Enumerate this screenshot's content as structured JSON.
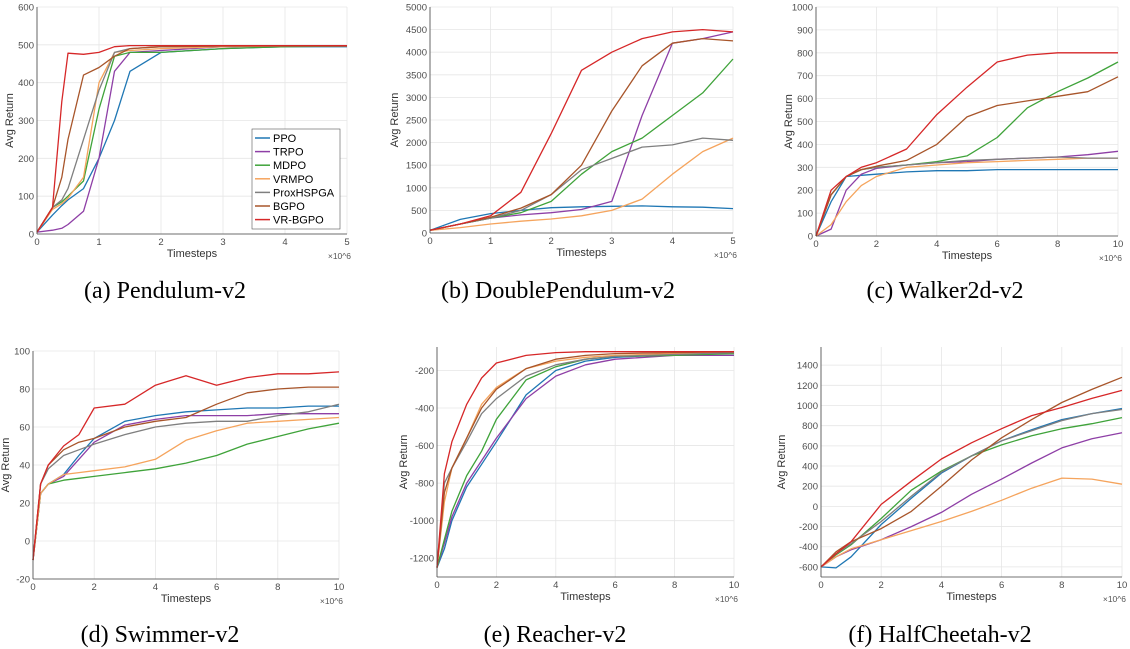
{
  "legend": {
    "placement": "bottom-right of panel (a)"
  },
  "colors": {
    "PPO": "#1f77b4",
    "TRPO": "#8e3fa6",
    "MDPO": "#3fa33a",
    "VRMPO": "#f5a45d",
    "ProxHSPGA": "#7f7f7f",
    "BGPO": "#a8552a",
    "VR-BGPO": "#d62728"
  },
  "chart_data": [
    {
      "type": "line",
      "caption": "(a) Pendulum-v2",
      "xlabel": "Timesteps",
      "ylabel": "Avg Return",
      "x_multiplier": "×10^6",
      "xlim": [
        0,
        5
      ],
      "ylim": [
        0,
        600
      ],
      "grid": true,
      "xticks": [
        0,
        1,
        2,
        3,
        4,
        5
      ],
      "yticks": [
        0,
        100,
        200,
        300,
        400,
        500,
        600
      ],
      "x": [
        0,
        0.25,
        0.4,
        0.5,
        0.75,
        1,
        1.25,
        1.5,
        2,
        3,
        4,
        5
      ],
      "series": [
        {
          "name": "PPO",
          "values": [
            5,
            50,
            75,
            90,
            120,
            200,
            300,
            430,
            480,
            490,
            495,
            495
          ]
        },
        {
          "name": "TRPO",
          "values": [
            5,
            10,
            15,
            25,
            60,
            200,
            430,
            480,
            485,
            495,
            497,
            497
          ]
        },
        {
          "name": "MDPO",
          "values": [
            5,
            70,
            85,
            100,
            140,
            330,
            470,
            480,
            480,
            490,
            495,
            497
          ]
        },
        {
          "name": "VRMPO",
          "values": [
            5,
            65,
            80,
            95,
            150,
            400,
            480,
            485,
            490,
            495,
            497,
            497
          ]
        },
        {
          "name": "ProxHSPGA",
          "values": [
            5,
            70,
            90,
            120,
            250,
            380,
            480,
            490,
            495,
            497,
            497,
            497
          ]
        },
        {
          "name": "BGPO",
          "values": [
            5,
            70,
            150,
            250,
            420,
            440,
            470,
            490,
            495,
            497,
            497,
            497
          ]
        },
        {
          "name": "VR-BGPO",
          "values": [
            5,
            70,
            350,
            478,
            475,
            480,
            495,
            498,
            498,
            498,
            498,
            498
          ]
        }
      ]
    },
    {
      "type": "line",
      "caption": "(b) DoublePendulum-v2",
      "xlabel": "Timesteps",
      "ylabel": "Avg Return",
      "x_multiplier": "×10^6",
      "xlim": [
        0,
        5
      ],
      "ylim": [
        0,
        5000
      ],
      "grid": true,
      "xticks": [
        0,
        1,
        2,
        3,
        4,
        5
      ],
      "yticks": [
        0,
        500,
        1000,
        1500,
        2000,
        2500,
        3000,
        3500,
        4000,
        4500,
        5000
      ],
      "x": [
        0,
        0.5,
        1,
        1.5,
        2,
        2.5,
        3,
        3.5,
        4,
        4.5,
        5
      ],
      "series": [
        {
          "name": "PPO",
          "values": [
            60,
            300,
            430,
            500,
            560,
            580,
            590,
            600,
            580,
            570,
            540
          ]
        },
        {
          "name": "TRPO",
          "values": [
            60,
            200,
            330,
            400,
            450,
            520,
            700,
            2600,
            4200,
            4300,
            4450
          ]
        },
        {
          "name": "MDPO",
          "values": [
            60,
            200,
            330,
            450,
            700,
            1300,
            1800,
            2100,
            2600,
            3100,
            3850
          ]
        },
        {
          "name": "VRMPO",
          "values": [
            60,
            120,
            200,
            260,
            310,
            380,
            500,
            750,
            1300,
            1800,
            2100
          ]
        },
        {
          "name": "ProxHSPGA",
          "values": [
            60,
            200,
            330,
            500,
            850,
            1400,
            1650,
            1900,
            1950,
            2100,
            2050
          ]
        },
        {
          "name": "BGPO",
          "values": [
            60,
            200,
            350,
            550,
            850,
            1500,
            2700,
            3700,
            4200,
            4300,
            4250
          ]
        },
        {
          "name": "VR-BGPO",
          "values": [
            60,
            200,
            380,
            900,
            2200,
            3600,
            4000,
            4300,
            4450,
            4500,
            4450
          ]
        }
      ]
    },
    {
      "type": "line",
      "caption": "(c) Walker2d-v2",
      "xlabel": "Timesteps",
      "ylabel": "Avg Return",
      "x_multiplier": "×10^6",
      "xlim": [
        0,
        10
      ],
      "ylim": [
        0,
        1000
      ],
      "grid": true,
      "xticks": [
        0,
        2,
        4,
        6,
        8,
        10
      ],
      "yticks": [
        0,
        100,
        200,
        300,
        400,
        500,
        600,
        700,
        800,
        900,
        1000
      ],
      "x": [
        0,
        0.5,
        1,
        1.5,
        2,
        3,
        4,
        5,
        6,
        7,
        8,
        9,
        10
      ],
      "series": [
        {
          "name": "PPO",
          "values": [
            0,
            150,
            260,
            265,
            270,
            280,
            285,
            285,
            290,
            290,
            290,
            290,
            290
          ]
        },
        {
          "name": "TRPO",
          "values": [
            0,
            30,
            200,
            270,
            295,
            310,
            320,
            325,
            335,
            340,
            345,
            355,
            370
          ]
        },
        {
          "name": "MDPO",
          "values": [
            0,
            180,
            260,
            290,
            300,
            310,
            325,
            350,
            430,
            560,
            630,
            690,
            760
          ]
        },
        {
          "name": "VRMPO",
          "values": [
            0,
            50,
            150,
            220,
            260,
            300,
            310,
            320,
            325,
            330,
            335,
            340,
            340
          ]
        },
        {
          "name": "ProxHSPGA",
          "values": [
            0,
            180,
            260,
            290,
            300,
            310,
            320,
            330,
            335,
            340,
            345,
            340,
            340
          ]
        },
        {
          "name": "BGPO",
          "values": [
            0,
            180,
            260,
            290,
            305,
            330,
            400,
            520,
            570,
            590,
            610,
            630,
            695
          ]
        },
        {
          "name": "VR-BGPO",
          "values": [
            0,
            200,
            260,
            300,
            320,
            380,
            530,
            650,
            760,
            790,
            800,
            800,
            800
          ]
        }
      ]
    },
    {
      "type": "line",
      "caption": "(d) Swimmer-v2",
      "xlabel": "Timesteps",
      "ylabel": "Avg Return",
      "x_multiplier": "×10^6",
      "xlim": [
        0,
        10
      ],
      "ylim": [
        -20,
        100
      ],
      "grid": true,
      "xticks": [
        0,
        2,
        4,
        6,
        8,
        10
      ],
      "yticks": [
        -20,
        0,
        20,
        40,
        60,
        80,
        100
      ],
      "x": [
        0,
        0.25,
        0.5,
        1,
        1.5,
        2,
        3,
        4,
        5,
        6,
        7,
        8,
        9,
        10
      ],
      "series": [
        {
          "name": "PPO",
          "values": [
            -10,
            25,
            30,
            35,
            45,
            54,
            63,
            66,
            68,
            69,
            70,
            70,
            71,
            71
          ]
        },
        {
          "name": "TRPO",
          "values": [
            -10,
            25,
            30,
            34,
            43,
            52,
            61,
            64,
            66,
            66,
            66,
            67,
            67,
            67
          ]
        },
        {
          "name": "MDPO",
          "values": [
            -10,
            25,
            30,
            32,
            33,
            34,
            36,
            38,
            41,
            45,
            51,
            55,
            59,
            62
          ]
        },
        {
          "name": "VRMPO",
          "values": [
            -10,
            25,
            30,
            35,
            36,
            37,
            39,
            43,
            53,
            58,
            62,
            63,
            64,
            65
          ]
        },
        {
          "name": "ProxHSPGA",
          "values": [
            -10,
            30,
            38,
            45,
            48,
            51,
            56,
            60,
            62,
            63,
            63,
            66,
            68,
            72
          ]
        },
        {
          "name": "BGPO",
          "values": [
            -10,
            30,
            40,
            48,
            52,
            54,
            60,
            63,
            65,
            72,
            78,
            80,
            81,
            81
          ]
        },
        {
          "name": "VR-BGPO",
          "values": [
            -10,
            30,
            40,
            50,
            56,
            70,
            72,
            82,
            87,
            82,
            86,
            88,
            88,
            89
          ]
        }
      ]
    },
    {
      "type": "line",
      "caption": "(e) Reacher-v2",
      "xlabel": "Timesteps",
      "ylabel": "Avg Return",
      "x_multiplier": "×10^6",
      "xlim": [
        0,
        10
      ],
      "ylim": [
        -1300,
        -75
      ],
      "grid": true,
      "xticks": [
        0,
        2,
        4,
        6,
        8,
        10
      ],
      "yticks": [
        -1200,
        -1000,
        -800,
        -600,
        -400,
        -200
      ],
      "x": [
        0,
        0.25,
        0.5,
        1,
        1.5,
        2,
        3,
        4,
        5,
        6,
        8,
        10
      ],
      "series": [
        {
          "name": "PPO",
          "values": [
            -1250,
            -1150,
            -1000,
            -820,
            -700,
            -580,
            -330,
            -200,
            -150,
            -130,
            -115,
            -110
          ]
        },
        {
          "name": "TRPO",
          "values": [
            -1250,
            -1120,
            -980,
            -800,
            -680,
            -560,
            -350,
            -230,
            -170,
            -140,
            -120,
            -120
          ]
        },
        {
          "name": "MDPO",
          "values": [
            -1250,
            -1100,
            -950,
            -760,
            -630,
            -460,
            -250,
            -180,
            -140,
            -125,
            -120,
            -110
          ]
        },
        {
          "name": "VRMPO",
          "values": [
            -1250,
            -900,
            -720,
            -560,
            -380,
            -290,
            -190,
            -150,
            -130,
            -120,
            -110,
            -105
          ]
        },
        {
          "name": "ProxHSPGA",
          "values": [
            -1250,
            -800,
            -720,
            -580,
            -430,
            -350,
            -230,
            -170,
            -140,
            -125,
            -115,
            -105
          ]
        },
        {
          "name": "BGPO",
          "values": [
            -1250,
            -850,
            -720,
            -560,
            -400,
            -300,
            -190,
            -140,
            -120,
            -110,
            -105,
            -100
          ]
        },
        {
          "name": "VR-BGPO",
          "values": [
            -1250,
            -750,
            -580,
            -380,
            -240,
            -160,
            -120,
            -105,
            -100,
            -100,
            -100,
            -100
          ]
        }
      ]
    },
    {
      "type": "line",
      "caption": "(f) HalfCheetah-v2",
      "xlabel": "Timesteps",
      "ylabel": "Avg Return",
      "x_multiplier": "×10^6",
      "xlim": [
        0,
        10
      ],
      "ylim": [
        -700,
        1580
      ],
      "grid": true,
      "xticks": [
        0,
        2,
        4,
        6,
        8,
        10
      ],
      "yticks": [
        -600,
        -400,
        -200,
        0,
        200,
        400,
        600,
        800,
        1000,
        1200,
        1400
      ],
      "x": [
        0,
        0.5,
        1,
        2,
        3,
        4,
        5,
        6,
        7,
        8,
        9,
        10
      ],
      "series": [
        {
          "name": "PPO",
          "values": [
            -600,
            -610,
            -500,
            -180,
            80,
            330,
            500,
            650,
            760,
            860,
            920,
            970
          ]
        },
        {
          "name": "TRPO",
          "values": [
            -600,
            -500,
            -430,
            -330,
            -200,
            -60,
            120,
            270,
            430,
            580,
            670,
            730
          ]
        },
        {
          "name": "MDPO",
          "values": [
            -600,
            -480,
            -380,
            -120,
            160,
            350,
            500,
            610,
            700,
            770,
            820,
            880
          ]
        },
        {
          "name": "VRMPO",
          "values": [
            -600,
            -500,
            -420,
            -330,
            -240,
            -150,
            -50,
            60,
            180,
            280,
            270,
            220
          ]
        },
        {
          "name": "ProxHSPGA",
          "values": [
            -600,
            -470,
            -370,
            -150,
            100,
            340,
            500,
            650,
            750,
            850,
            920,
            960
          ]
        },
        {
          "name": "BGPO",
          "values": [
            -600,
            -450,
            -350,
            -220,
            -50,
            200,
            460,
            680,
            860,
            1030,
            1160,
            1280
          ]
        },
        {
          "name": "VR-BGPO",
          "values": [
            -600,
            -470,
            -350,
            20,
            250,
            470,
            630,
            770,
            900,
            980,
            1070,
            1150
          ]
        }
      ]
    }
  ]
}
